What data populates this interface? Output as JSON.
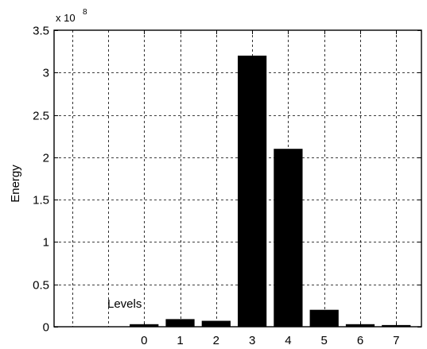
{
  "chart_data": {
    "type": "bar",
    "title": "",
    "xlabel": "",
    "ylabel": "Energy",
    "scale_label": {
      "prefix": "x 10",
      "exponent": "8"
    },
    "annotation": "Levels",
    "categories": [
      "0",
      "1",
      "2",
      "3",
      "4",
      "5",
      "6",
      "7"
    ],
    "values": [
      0.03,
      0.09,
      0.07,
      3.2,
      2.1,
      0.2,
      0.03,
      0.02
    ],
    "ylim": [
      0,
      3.5
    ],
    "xlim": [
      -2.5,
      7.7
    ],
    "yticks": [
      0,
      0.5,
      1,
      1.5,
      2,
      2.5,
      3,
      3.5
    ],
    "ytick_labels": [
      "0",
      "0.5",
      "1",
      "1.5",
      "2",
      "2.5",
      "3",
      "3.5"
    ],
    "grid": true,
    "bar_color": "#000000",
    "grid_color": "#000000"
  }
}
